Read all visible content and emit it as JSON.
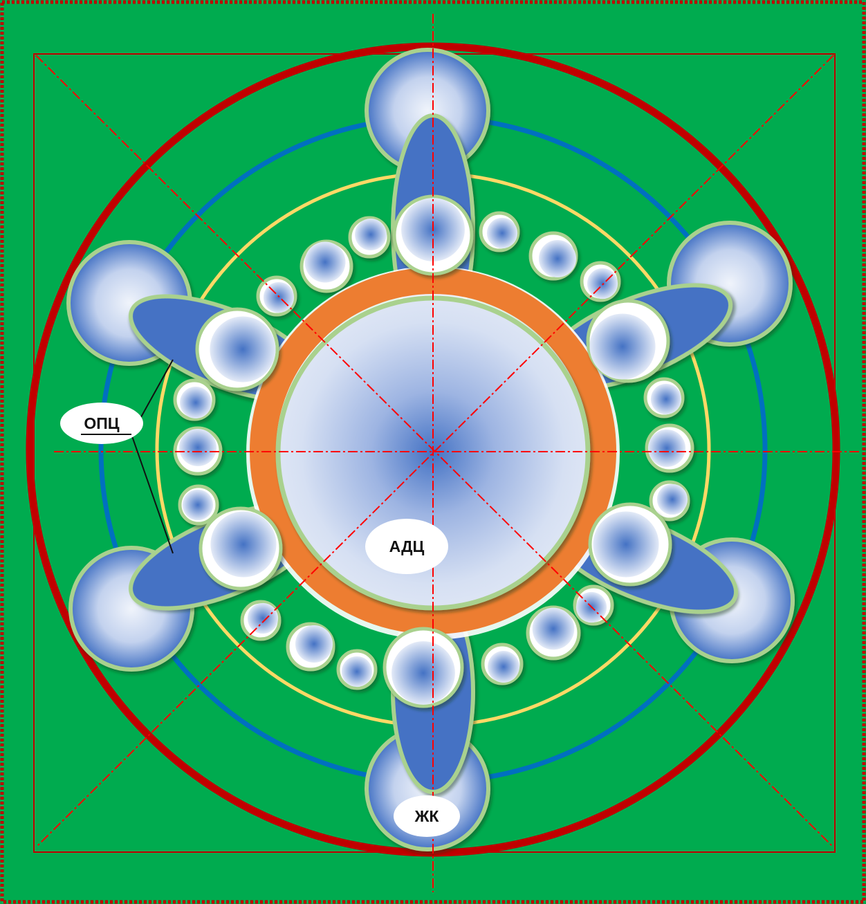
{
  "labels": {
    "opc": "ОПЦ",
    "adc": "АДЦ",
    "zhk": "ЖК"
  },
  "colors": {
    "background": "#00ab4f",
    "frame_dashed": "#c00000",
    "outer_ring": "#c00000",
    "blue_ring": "#0070c0",
    "yellow_ring": "#ffd966",
    "orange_ring": "#ed7d31",
    "petal": "#4472c4",
    "petal_stroke": "#a9d18e",
    "axis_lines": "#ff0000",
    "bubble_light": "#dae3f3",
    "bubble_dark": "#4472c4"
  }
}
